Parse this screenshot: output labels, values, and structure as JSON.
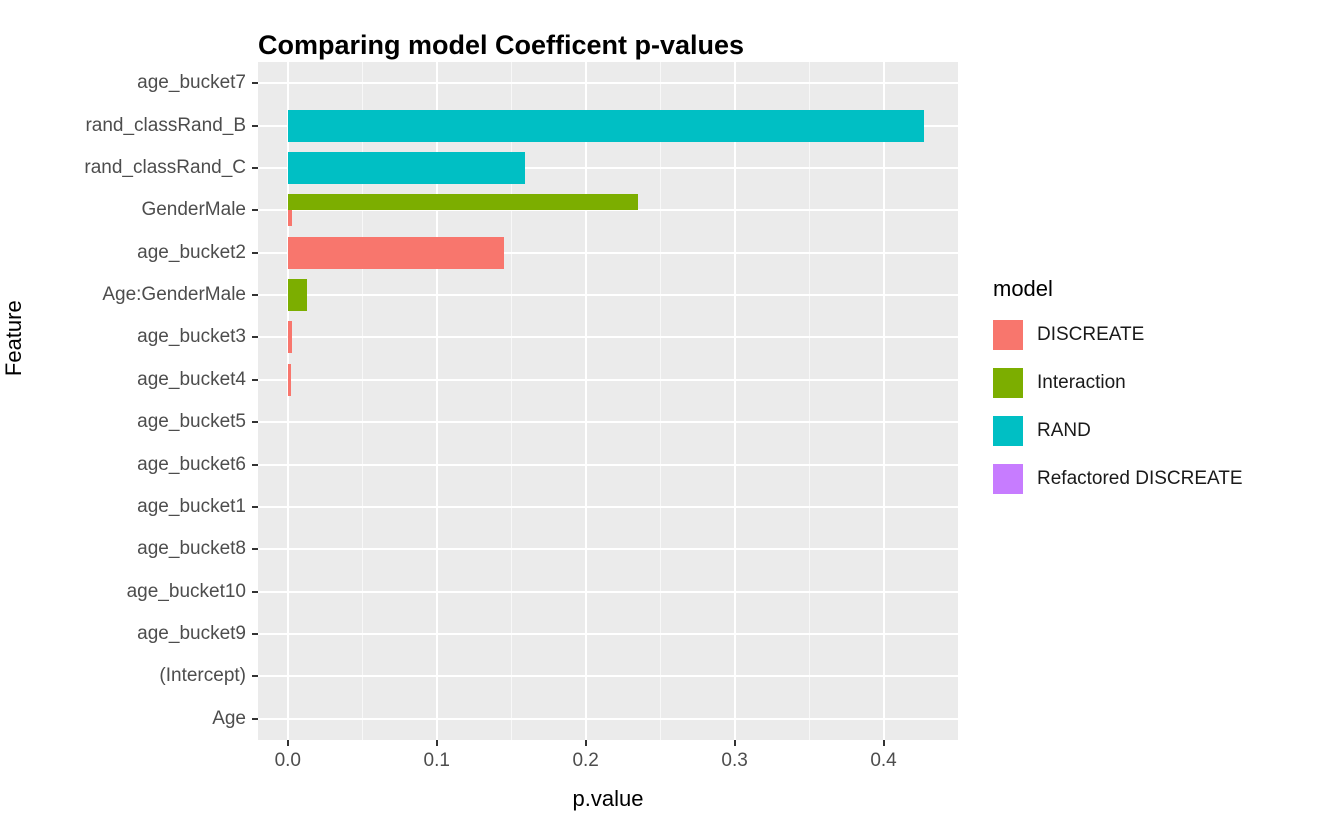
{
  "title": "Comparing model Coefficent p-values",
  "chart_data": {
    "type": "bar",
    "orientation": "horizontal",
    "title": "Comparing model Coefficent p-values",
    "xlabel": "p.value",
    "ylabel": "Feature",
    "xlim": [
      -0.02,
      0.45
    ],
    "x_ticks": [
      0.0,
      0.1,
      0.2,
      0.3,
      0.4
    ],
    "x_tick_labels": [
      "0.0",
      "0.1",
      "0.2",
      "0.3",
      "0.4"
    ],
    "x_minor_ticks": [
      0.05,
      0.15,
      0.25,
      0.35,
      0.45
    ],
    "grid": true,
    "panel_background": "#EBEBEB",
    "grid_color": "#FFFFFF",
    "categories": [
      "age_bucket7",
      "rand_classRand_B",
      "rand_classRand_C",
      "GenderMale",
      "age_bucket2",
      "Age:GenderMale",
      "age_bucket3",
      "age_bucket4",
      "age_bucket5",
      "age_bucket6",
      "age_bucket1",
      "age_bucket8",
      "age_bucket10",
      "age_bucket9",
      "(Intercept)",
      "Age"
    ],
    "series": [
      {
        "name": "DISCREATE",
        "color": "#F8766D",
        "values": [
          0,
          0,
          0,
          0.003,
          0.145,
          0,
          0.003,
          0.002,
          0,
          0,
          0,
          0,
          0,
          0,
          0,
          0
        ]
      },
      {
        "name": "Interaction",
        "color": "#7CAE00",
        "values": [
          0,
          0,
          0,
          0.235,
          0,
          0.013,
          0,
          0,
          0,
          0,
          0,
          0,
          0,
          0,
          0,
          0
        ]
      },
      {
        "name": "RAND",
        "color": "#00BFC4",
        "values": [
          0,
          0.427,
          0.159,
          0,
          0,
          0,
          0,
          0,
          0,
          0,
          0,
          0,
          0,
          0,
          0,
          0
        ]
      },
      {
        "name": "Refactored DISCREATE",
        "color": "#C77CFF",
        "values": [
          0,
          0,
          0,
          0,
          0,
          0,
          0,
          0,
          0,
          0,
          0,
          0,
          0,
          0,
          0,
          0
        ]
      }
    ],
    "legend": {
      "title": "model",
      "position": "right",
      "entries": [
        "DISCREATE",
        "Interaction",
        "RAND",
        "Refactored DISCREATE"
      ]
    }
  },
  "legend": {
    "title": "model"
  }
}
